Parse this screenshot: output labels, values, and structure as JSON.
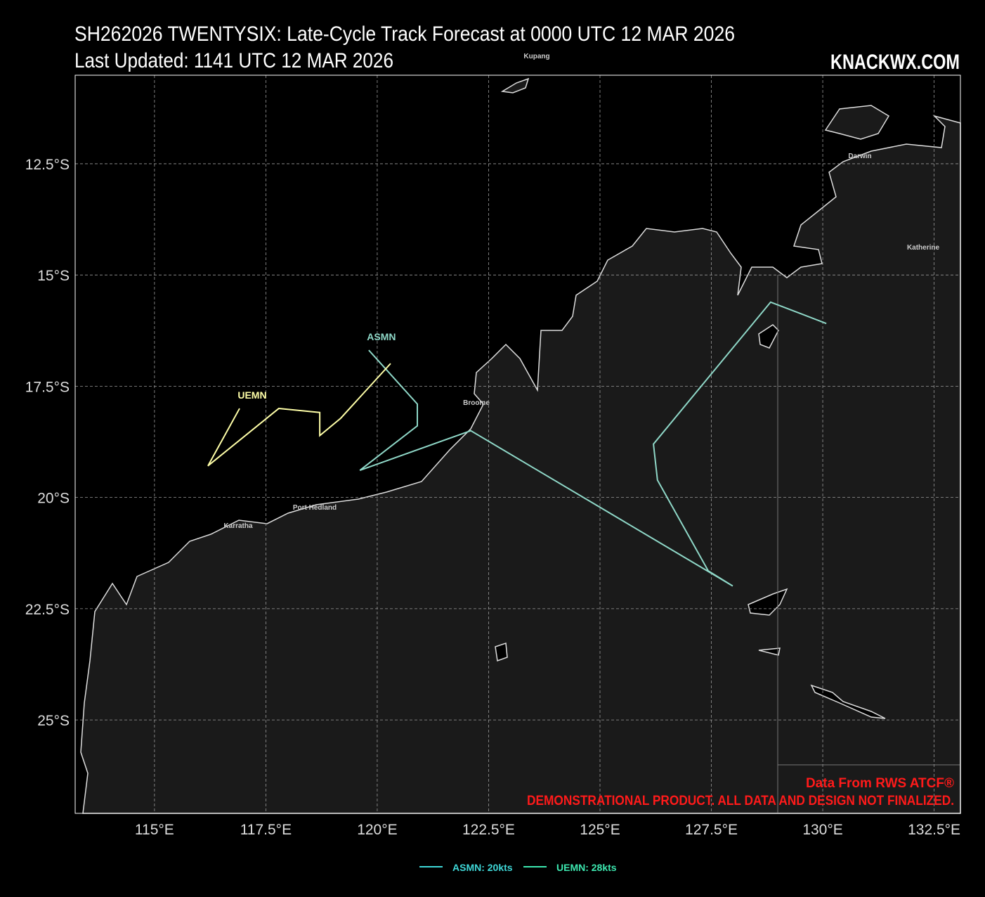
{
  "chart_data": {
    "type": "track-map",
    "title": "SH262026 TWENTYSIX: Late-Cycle Track Forecast at 0000 UTC 12 MAR 2026",
    "subtitle": "Last Updated: 1141 UTC 12 MAR 2026",
    "brand": "KNACKWX.COM",
    "xlim": [
      113.22,
      133.09
    ],
    "ylim": [
      -10.51,
      -27.1
    ],
    "xticks": [
      {
        "value": 115,
        "label": "115°E"
      },
      {
        "value": 117.5,
        "label": "117.5°E"
      },
      {
        "value": 120,
        "label": "120°E"
      },
      {
        "value": 122.5,
        "label": "122.5°E"
      },
      {
        "value": 125,
        "label": "125°E"
      },
      {
        "value": 127.5,
        "label": "127.5°E"
      },
      {
        "value": 130,
        "label": "130°E"
      },
      {
        "value": 132.5,
        "label": "132.5°E"
      }
    ],
    "yticks": [
      {
        "value": -12.5,
        "label": "12.5°S"
      },
      {
        "value": -15,
        "label": "15°S"
      },
      {
        "value": -17.5,
        "label": "17.5°S"
      },
      {
        "value": -20,
        "label": "20°S"
      },
      {
        "value": -22.5,
        "label": "22.5°S"
      },
      {
        "value": -25,
        "label": "25°S"
      }
    ],
    "grid": true,
    "series": [
      {
        "name": "ASMN",
        "color": "#8fd8c8",
        "legend_label": "ASMN: 20kts",
        "legend_color": "#3fd8d8",
        "x": [
          119.81,
          120.9,
          120.9,
          119.61,
          122.1,
          127.98,
          127.43,
          126.29,
          126.2,
          128.83,
          130.08
        ],
        "y": [
          -16.69,
          -17.9,
          -18.39,
          -19.39,
          -18.5,
          -21.99,
          -21.65,
          -19.61,
          -18.8,
          -15.61,
          -16.09
        ]
      },
      {
        "name": "UEMN",
        "color": "#ffffa8",
        "legend_label": "UEMN: 28kts",
        "legend_color": "#3de8b0",
        "x": [
          116.91,
          116.2,
          117.79,
          118.71,
          118.71,
          119.18,
          120.3
        ],
        "y": [
          -18.0,
          -19.29,
          -18.0,
          -18.09,
          -18.61,
          -18.22,
          -16.99
        ]
      }
    ],
    "places": [
      "Kupang",
      "Darwin",
      "Katherine",
      "Broome",
      "Port Hedland",
      "Karratha"
    ],
    "credits": [
      "Data From RWS ATCF®",
      "DEMONSTRATIONAL PRODUCT. ALL DATA AND DESIGN NOT FINALIZED."
    ]
  }
}
